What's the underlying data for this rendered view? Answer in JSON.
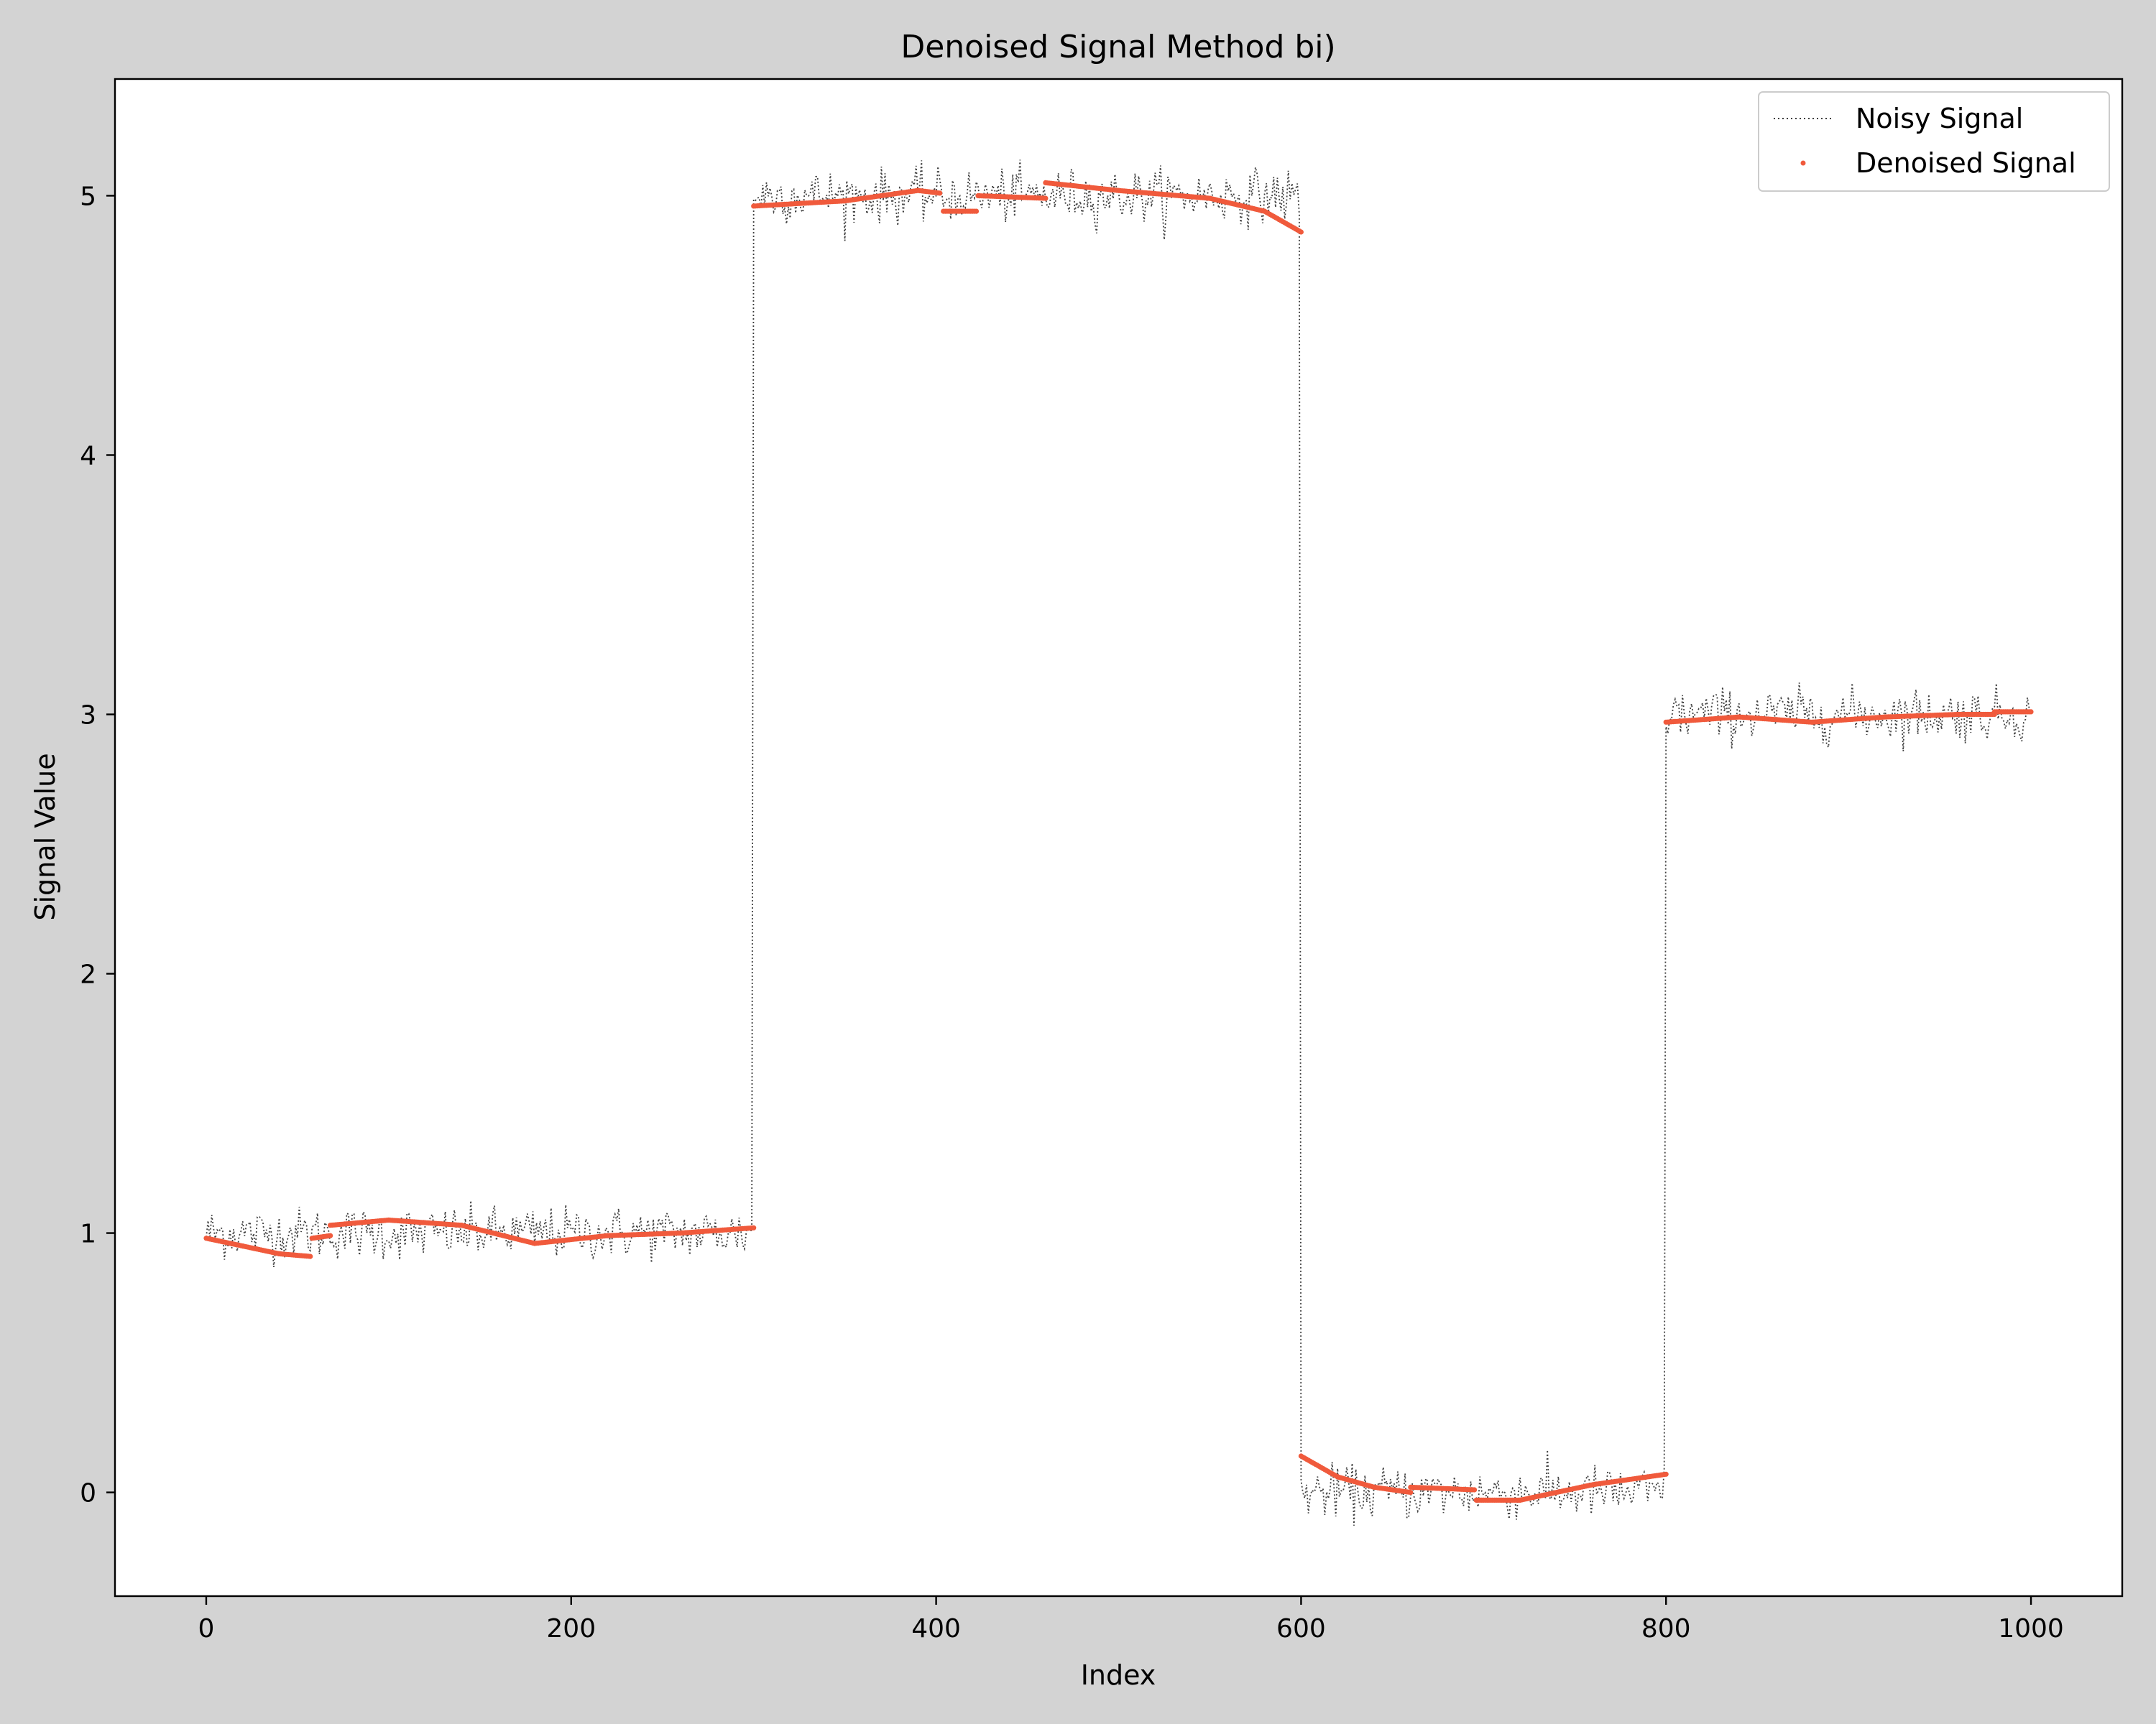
{
  "chart_data": {
    "type": "line",
    "title": "Denoised Signal Method bi)",
    "xlabel": "Index",
    "ylabel": "Signal Value",
    "xlim": [
      -50,
      1050
    ],
    "ylim": [
      -0.4,
      5.45
    ],
    "xticks": [
      0,
      200,
      400,
      600,
      800,
      1000
    ],
    "yticks": [
      0,
      1,
      2,
      3,
      4,
      5
    ],
    "grid": false,
    "legend_position": "upper right",
    "legend": [
      "Noisy Signal",
      "Denoised Signal"
    ],
    "colors": {
      "noisy": "#404040",
      "denoised": "#f05a3c",
      "figure_bg": "#d3d3d3",
      "axes_bg": "#ffffff"
    },
    "series": [
      {
        "name": "Noisy Signal",
        "style": "dotted-line",
        "segments": [
          {
            "x_start": 0,
            "x_end": 300,
            "level": 1.0,
            "noise": 0.05
          },
          {
            "x_start": 300,
            "x_end": 600,
            "level": 5.0,
            "noise": 0.05
          },
          {
            "x_start": 600,
            "x_end": 800,
            "level": 0.0,
            "noise": 0.05
          },
          {
            "x_start": 800,
            "x_end": 1000,
            "level": 3.0,
            "noise": 0.05
          }
        ]
      },
      {
        "name": "Denoised Signal",
        "style": "points",
        "pieces": [
          {
            "x": [
              0,
              20,
              40,
              57
            ],
            "y": [
              0.98,
              0.95,
              0.92,
              0.91
            ]
          },
          {
            "x": [
              58,
              68
            ],
            "y": [
              0.98,
              0.99
            ]
          },
          {
            "x": [
              68,
              100,
              140,
              180,
              220,
              260,
              300
            ],
            "y": [
              1.03,
              1.05,
              1.03,
              0.96,
              0.99,
              1.0,
              1.02
            ]
          },
          {
            "x": [
              300,
              350,
              390,
              402
            ],
            "y": [
              4.96,
              4.98,
              5.02,
              5.01
            ]
          },
          {
            "x": [
              404,
              422
            ],
            "y": [
              4.94,
              4.94
            ]
          },
          {
            "x": [
              423,
              460
            ],
            "y": [
              5.0,
              4.99
            ]
          },
          {
            "x": [
              460,
              500,
              550,
              580,
              600
            ],
            "y": [
              5.05,
              5.02,
              4.99,
              4.94,
              4.86
            ]
          },
          {
            "x": [
              600,
              620,
              640,
              660
            ],
            "y": [
              0.14,
              0.06,
              0.02,
              0.0
            ]
          },
          {
            "x": [
              660,
              695
            ],
            "y": [
              0.02,
              0.01
            ]
          },
          {
            "x": [
              696,
              720,
              760,
              800
            ],
            "y": [
              -0.03,
              -0.03,
              0.03,
              0.07
            ]
          },
          {
            "x": [
              800,
              840,
              880,
              920,
              960,
              980
            ],
            "y": [
              2.97,
              2.99,
              2.97,
              2.99,
              3.0,
              3.0
            ]
          },
          {
            "x": [
              980,
              1000
            ],
            "y": [
              3.01,
              3.01
            ]
          }
        ]
      }
    ]
  }
}
